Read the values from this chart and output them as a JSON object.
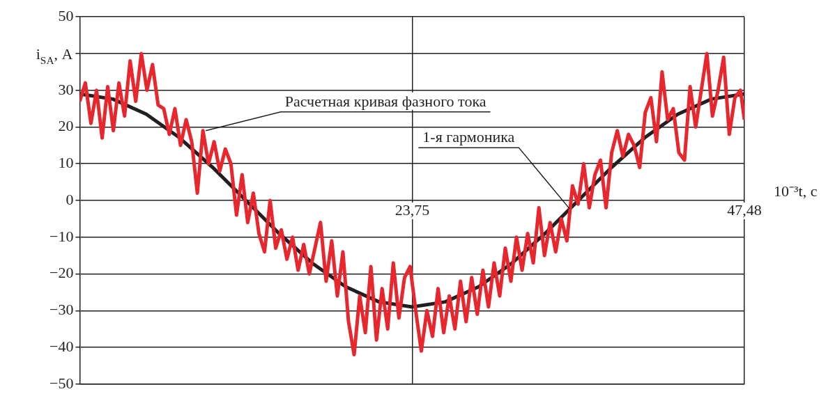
{
  "chart_data": {
    "type": "line",
    "xlabel": "10⁻³t, с",
    "ylabel": "i$_{SA}$, А",
    "xlim": [
      0,
      47.48
    ],
    "xticks": [
      {
        "value": 23.75,
        "label": "23,75"
      },
      {
        "value": 47.48,
        "label": "47,48"
      }
    ],
    "ylim": [
      -50,
      50
    ],
    "yticks": [
      -50,
      -40,
      -30,
      -20,
      -10,
      0,
      10,
      20,
      30,
      {
        "value": 40,
        "label": null
      },
      50
    ],
    "grid": true,
    "legend": false,
    "marker": "none",
    "line_style": "solid",
    "series": [
      {
        "color": "#e8262d",
        "x": [
          0,
          0.4,
          0.8,
          1.2,
          1.6,
          2.0,
          2.4,
          2.8,
          3.2,
          3.6,
          4.0,
          4.4,
          4.8,
          5.2,
          5.6,
          6.0,
          6.4,
          6.8,
          7.2,
          7.6,
          8.0,
          8.4,
          8.8,
          9.2,
          9.6,
          10.0,
          10.4,
          10.8,
          11.2,
          11.6,
          12.0,
          12.4,
          12.8,
          13.2,
          13.6,
          14.0,
          14.4,
          14.8,
          15.2,
          15.6,
          16.0,
          16.4,
          16.8,
          17.2,
          17.6,
          18.0,
          18.4,
          18.8,
          19.2,
          19.6,
          20.0,
          20.4,
          20.8,
          21.2,
          21.6,
          22.0,
          22.4,
          22.8,
          23.2,
          23.6,
          24.0,
          24.4,
          24.8,
          25.2,
          25.6,
          26.0,
          26.4,
          26.8,
          27.2,
          27.6,
          28.0,
          28.4,
          28.8,
          29.2,
          29.6,
          30.0,
          30.4,
          30.8,
          31.2,
          31.6,
          32.0,
          32.4,
          32.8,
          33.2,
          33.6,
          34.0,
          34.4,
          34.8,
          35.2,
          35.6,
          36.0,
          36.4,
          36.8,
          37.2,
          37.6,
          38.0,
          38.4,
          38.8,
          39.2,
          39.6,
          40.0,
          40.4,
          40.8,
          41.2,
          41.6,
          42.0,
          42.4,
          42.8,
          43.2,
          43.6,
          44.0,
          44.4,
          44.8,
          45.2,
          45.6,
          46.0,
          46.4,
          46.8,
          47.2,
          47.48
        ],
        "values": [
          27,
          32,
          21,
          30,
          17,
          31,
          19,
          32,
          23,
          38,
          27,
          40,
          30,
          37,
          26,
          25,
          18,
          25,
          15,
          22,
          16,
          2,
          19,
          10,
          16,
          8,
          14,
          10,
          -4,
          7,
          -6,
          2,
          -9,
          -14,
          0,
          -13,
          -8,
          -16,
          -10,
          -19,
          -12,
          -20,
          -13,
          -6,
          -22,
          -11,
          -26,
          -14,
          -33,
          -42,
          -26,
          -36,
          -18,
          -38,
          -24,
          -35,
          -17,
          -32,
          -21,
          -18,
          -30,
          -41,
          -30,
          -37,
          -24,
          -36,
          -26,
          -35,
          -22,
          -33,
          -21,
          -31,
          -19,
          -29,
          -17,
          -26,
          -13,
          -22,
          -10,
          -19,
          -9,
          -17,
          -2,
          -15,
          -6,
          -14,
          -5,
          -11,
          4,
          -1,
          10,
          -2,
          7,
          11,
          -2,
          13,
          19,
          12,
          18,
          15,
          9,
          24,
          28,
          16,
          35,
          22,
          25,
          13,
          11,
          31,
          20,
          30,
          40,
          23,
          30,
          39,
          18,
          28,
          30,
          22
        ]
      },
      {
        "color": "#231f20",
        "x": [
          0,
          2.37,
          4.75,
          7.12,
          9.5,
          11.87,
          14.24,
          16.62,
          19,
          21.37,
          23.75,
          26.12,
          28.5,
          30.87,
          33.24,
          35.61,
          37.99,
          40.36,
          42.73,
          45.11,
          47.48
        ],
        "values": [
          29,
          27.6,
          23.5,
          17.1,
          9,
          0,
          -9,
          -17.1,
          -23.5,
          -27.6,
          -29,
          -27.6,
          -23.5,
          -17.1,
          -9,
          0,
          9,
          17.1,
          23.5,
          27.6,
          29
        ]
      }
    ],
    "annotations": [
      {
        "text": "Расчетная кривая фазного тока",
        "x": 9.0,
        "y": 19
      },
      {
        "text": "1-я гармоника",
        "x": 35.0,
        "y": -2.3
      }
    ]
  }
}
